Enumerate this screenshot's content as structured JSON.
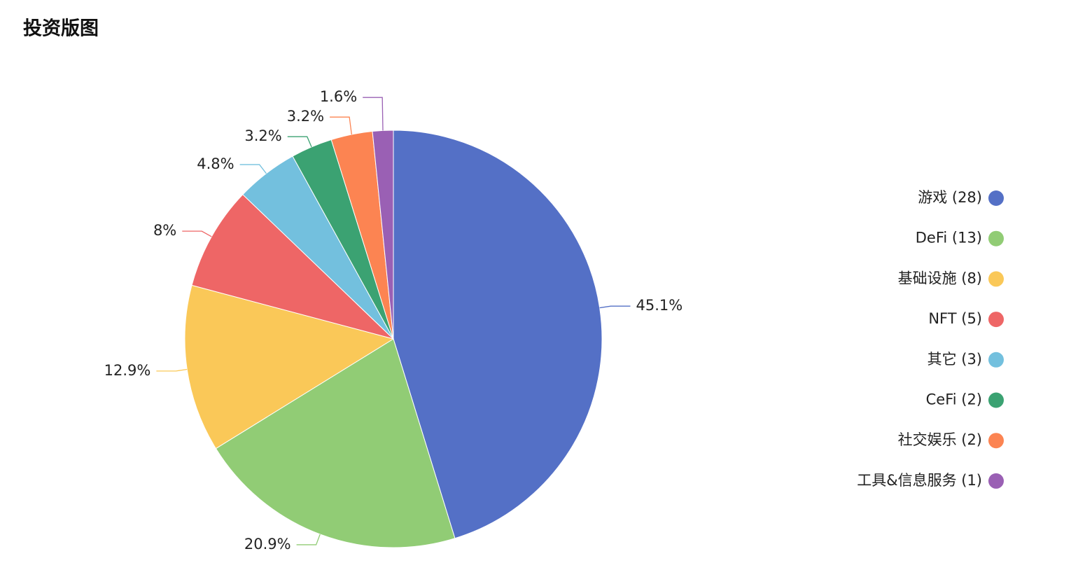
{
  "chart_data": {
    "type": "pie",
    "title": "投资版图",
    "categories": [
      "游戏 (28)",
      "DeFi (13)",
      "基础设施 (8)",
      "NFT (5)",
      "其它 (3)",
      "CeFi (2)",
      "社交娱乐 (2)",
      "工具&信息服务 (1)"
    ],
    "values": [
      45.1,
      20.9,
      12.9,
      8,
      4.8,
      3.2,
      3.2,
      1.6
    ],
    "value_labels": [
      "45.1%",
      "20.9%",
      "12.9%",
      "8%",
      "4.8%",
      "3.2%",
      "3.2%",
      "1.6%"
    ],
    "colors": [
      "#5470c6",
      "#91cc75",
      "#fac858",
      "#ee6666",
      "#73c0de",
      "#3ba272",
      "#fc8452",
      "#9a60b4"
    ],
    "legend_position": "right"
  }
}
